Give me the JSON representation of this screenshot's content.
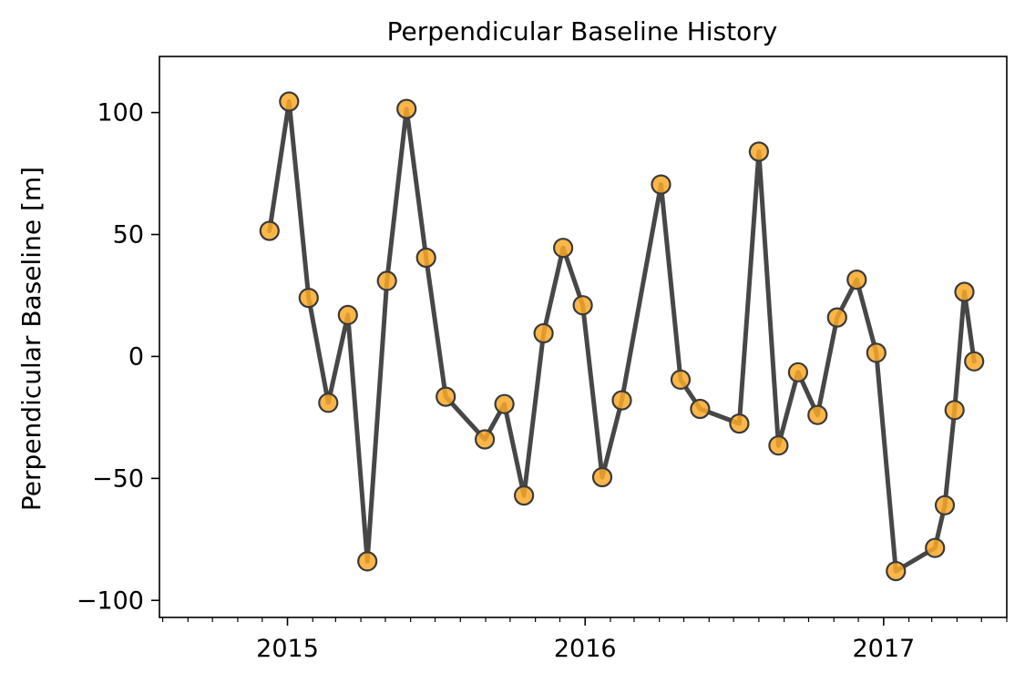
{
  "chart_data": {
    "type": "line",
    "title": "Perpendicular Baseline History",
    "xlabel": "",
    "ylabel": "Perpendicular Baseline [m]",
    "x_tick_labels": [
      "2015",
      "2016",
      "2017"
    ],
    "x_tick_years": [
      2015,
      2016,
      2017
    ],
    "y_ticks": [
      100,
      50,
      0,
      -50,
      -100
    ],
    "y_tick_labels": [
      "100",
      "50",
      "0",
      "−50",
      "−100"
    ],
    "xlim": [
      "2014-07-28",
      "2017-06-01"
    ],
    "ylim": [
      -107,
      123
    ],
    "grid": false,
    "line_color": "#474747",
    "marker_color": "#f9a928",
    "marker_edge_color": "#3a3a3a",
    "x": [
      "2014-12-10",
      "2015-01-03",
      "2015-01-27",
      "2015-02-20",
      "2015-03-16",
      "2015-04-09",
      "2015-05-03",
      "2015-05-27",
      "2015-06-20",
      "2015-07-14",
      "2015-08-31",
      "2015-09-24",
      "2015-10-18",
      "2015-11-11",
      "2015-12-05",
      "2015-12-29",
      "2016-01-22",
      "2016-02-15",
      "2016-04-03",
      "2016-04-27",
      "2016-05-21",
      "2016-07-08",
      "2016-08-01",
      "2016-08-25",
      "2016-09-18",
      "2016-10-12",
      "2016-11-05",
      "2016-11-29",
      "2016-12-23",
      "2017-01-16",
      "2017-03-05",
      "2017-03-17",
      "2017-03-29",
      "2017-04-10",
      "2017-04-22"
    ],
    "y": [
      51.5,
      104.5,
      24,
      -19,
      17,
      -84,
      31,
      101.5,
      40.5,
      -16.5,
      -34,
      -19.5,
      -57,
      9.5,
      44.5,
      21,
      -49.5,
      -18,
      70.5,
      -9.5,
      -21.5,
      -27.5,
      84,
      -36.5,
      -6.5,
      -24,
      16,
      31.5,
      1.5,
      -88,
      -78.5,
      -61,
      -22,
      26.5,
      -2
    ]
  }
}
